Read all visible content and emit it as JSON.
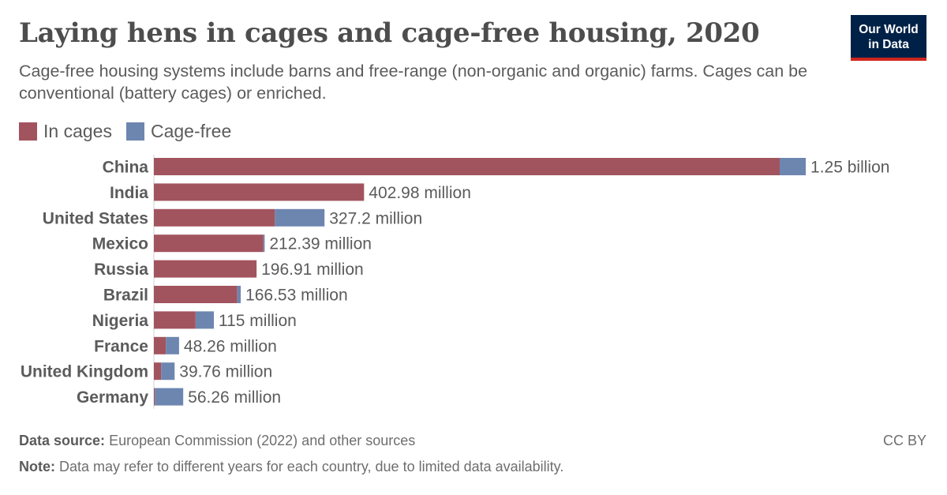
{
  "header": {
    "title": "Laying hens in cages and cage-free housing, 2020",
    "subtitle": "Cage-free housing systems include barns and free-range (non-organic and organic) farms. Cages can be conventional (battery cages) or enriched.",
    "logo_line1": "Our World",
    "logo_line2": "in Data"
  },
  "colors": {
    "in_cages": "#a2545e",
    "cage_free": "#6d86b0",
    "axis": "#d0d0d0"
  },
  "chart_data": {
    "type": "bar",
    "orientation": "horizontal",
    "stacked": true,
    "title": "Laying hens in cages and cage-free housing, 2020",
    "legend_position": "top-left",
    "categories": [
      "China",
      "India",
      "United States",
      "Mexico",
      "Russia",
      "Brazil",
      "Nigeria",
      "France",
      "United Kingdom",
      "Germany"
    ],
    "series": [
      {
        "name": "In cages",
        "values": [
          1200000000,
          402980000,
          232000000,
          210000000,
          196910000,
          160000000,
          80000000,
          23000000,
          14000000,
          2000000
        ]
      },
      {
        "name": "Cage-free",
        "values": [
          50000000,
          0,
          95200000,
          2390000,
          0,
          6530000,
          35000000,
          25260000,
          25760000,
          54260000
        ]
      }
    ],
    "total_labels": [
      "1.25 billion",
      "402.98 million",
      "327.2 million",
      "212.39 million",
      "196.91 million",
      "166.53 million",
      "115 million",
      "48.26 million",
      "39.76 million",
      "56.26 million"
    ],
    "xlim": [
      0,
      1250000000
    ]
  },
  "footer": {
    "source_label": "Data source:",
    "source_text": "European Commission (2022) and other sources",
    "note_label": "Note:",
    "note_text": "Data may refer to different years for each country, due to limited data availability.",
    "license": "CC BY"
  }
}
